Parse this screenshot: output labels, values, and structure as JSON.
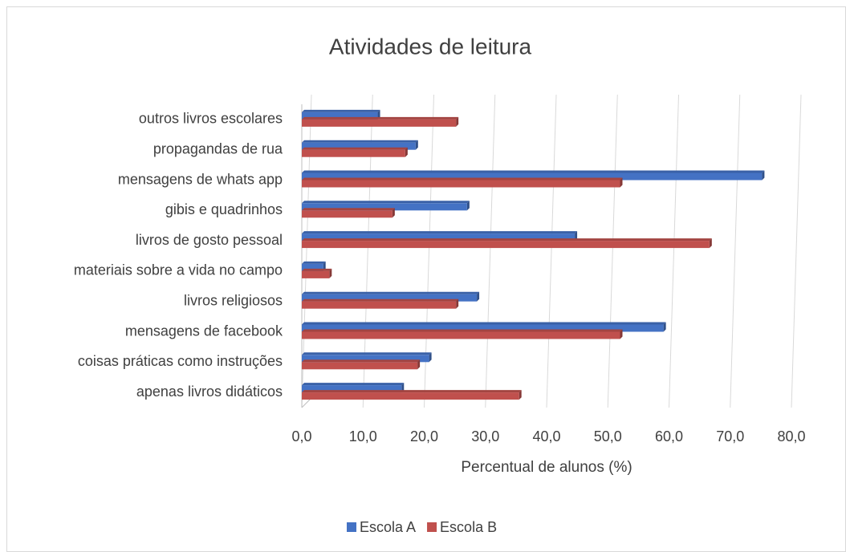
{
  "chart_data": {
    "type": "bar",
    "orientation": "horizontal",
    "title": "Atividades de leitura",
    "x_label": "Percentual de alunos (%)",
    "categories": [
      "outros livros escolares",
      "propagandas de rua",
      "mensagens de whats app",
      "gibis e quadrinhos",
      "livros de gosto pessoal",
      "materiais sobre a vida no campo",
      "livros religiosos",
      "mensagens de facebook",
      "coisas práticas como instruções",
      "apenas livros didáticos"
    ],
    "series": [
      {
        "name": "Escola A",
        "color": "#4472c4",
        "values": [
          12.4,
          18.6,
          75.2,
          27.0,
          44.6,
          3.5,
          28.6,
          59.1,
          20.8,
          16.3
        ]
      },
      {
        "name": "Escola B",
        "color": "#c0504d",
        "values": [
          25.2,
          16.9,
          52.0,
          14.8,
          66.6,
          4.5,
          25.2,
          52.0,
          18.9,
          35.5
        ]
      }
    ],
    "xlim": [
      0,
      80
    ],
    "xticks": [
      {
        "value": 0,
        "label": "0,0"
      },
      {
        "value": 10,
        "label": "10,0"
      },
      {
        "value": 20,
        "label": "20,0"
      },
      {
        "value": 30,
        "label": "30,0"
      },
      {
        "value": 40,
        "label": "40,0"
      },
      {
        "value": 50,
        "label": "50,0"
      },
      {
        "value": 60,
        "label": "60,0"
      },
      {
        "value": 70,
        "label": "70,0"
      },
      {
        "value": 80,
        "label": "80,0"
      }
    ],
    "grid": true,
    "legend": "bottom"
  }
}
